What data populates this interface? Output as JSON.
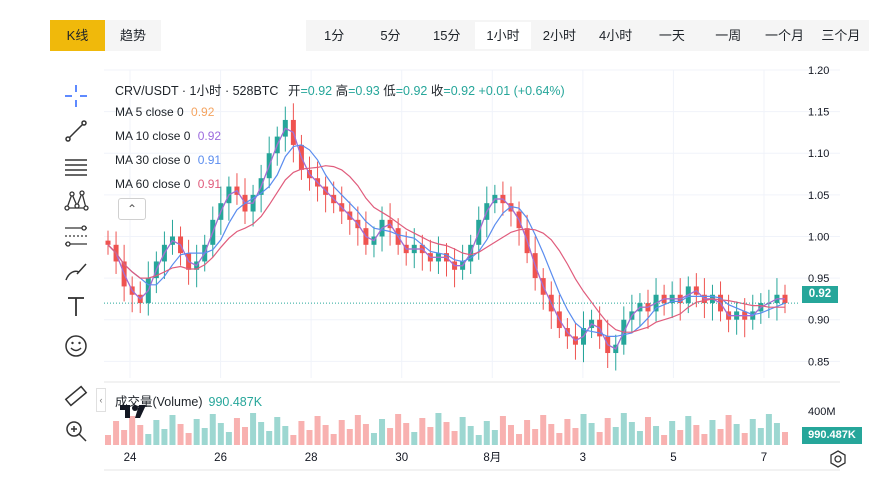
{
  "view_tabs": {
    "kline": "K线",
    "trend": "趋势"
  },
  "intervals": [
    "1分",
    "5分",
    "15分",
    "1小时",
    "2小时",
    "4小时",
    "一天",
    "一周",
    "一个月",
    "三个月"
  ],
  "active_interval": "1小时",
  "chart_header": {
    "symbol": "CRV/USDT · 1小时 · 528BTC",
    "open_label": "开",
    "open": "=0.92",
    "high_label": "高",
    "high": "=0.93",
    "low_label": "低",
    "low": "=0.92",
    "close_label": "收",
    "close": "=0.92",
    "change": "+0.01 (+0.64%)"
  },
  "ma_lines": [
    {
      "label": "MA 5 close 0",
      "value": "0.92",
      "color": "#f4a460"
    },
    {
      "label": "MA 10 close 0",
      "value": "0.92",
      "color": "#9c6ade"
    },
    {
      "label": "MA 30 close 0",
      "value": "0.91",
      "color": "#5b8def"
    },
    {
      "label": "MA 60 close 0",
      "value": "0.91",
      "color": "#e05c7c"
    }
  ],
  "volume_indicator": {
    "label": "成交量(Volume)",
    "value": "990.487K"
  },
  "price_tag": "0.92",
  "volume_tag": "990.487K",
  "volume_axis_label": "400M",
  "icons": [
    "crosshair-icon",
    "trend-line-icon",
    "horizontal-lines-icon",
    "pattern-icon",
    "fib-icon",
    "brush-icon",
    "text-icon",
    "emoji-icon",
    "ruler-icon",
    "zoom-in-icon",
    "settings-icon"
  ],
  "colors": {
    "up": "#26a69a",
    "down": "#ef5350",
    "accent": "#f0b90b"
  },
  "chart_data": {
    "type": "candlestick",
    "title": "CRV/USDT · 1小时 · 528BTC",
    "y_ticks": [
      "1.20",
      "1.15",
      "1.10",
      "1.05",
      "1.00",
      "0.95",
      "0.90",
      "0.85"
    ],
    "ylim": [
      0.83,
      1.2
    ],
    "x_ticks": [
      "24",
      "26",
      "28",
      "30",
      "8月",
      "3",
      "5",
      "7"
    ],
    "current_price": 0.92,
    "series": [
      {
        "name": "MA 5 close 0",
        "color": "#f4a460"
      },
      {
        "name": "MA 10 close 0",
        "color": "#9c6ade"
      },
      {
        "name": "MA 30 close 0",
        "color": "#5b8def"
      },
      {
        "name": "MA 60 close 0",
        "color": "#e05c7c"
      }
    ],
    "close": [
      0.99,
      0.97,
      0.94,
      0.93,
      0.92,
      0.95,
      0.97,
      0.99,
      1.0,
      0.98,
      0.96,
      0.97,
      0.99,
      1.02,
      1.04,
      1.06,
      1.05,
      1.03,
      1.05,
      1.07,
      1.1,
      1.12,
      1.14,
      1.11,
      1.08,
      1.07,
      1.06,
      1.05,
      1.04,
      1.03,
      1.02,
      1.01,
      0.99,
      1.0,
      1.02,
      1.01,
      0.99,
      0.98,
      0.99,
      0.98,
      0.97,
      0.98,
      0.97,
      0.96,
      0.97,
      0.99,
      1.02,
      1.04,
      1.05,
      1.04,
      1.03,
      1.01,
      0.98,
      0.95,
      0.93,
      0.91,
      0.89,
      0.88,
      0.87,
      0.89,
      0.9,
      0.88,
      0.86,
      0.87,
      0.9,
      0.91,
      0.92,
      0.91,
      0.93,
      0.92,
      0.93,
      0.92,
      0.94,
      0.93,
      0.92,
      0.93,
      0.91,
      0.9,
      0.91,
      0.9,
      0.91,
      0.92,
      0.92,
      0.93,
      0.92
    ]
  }
}
